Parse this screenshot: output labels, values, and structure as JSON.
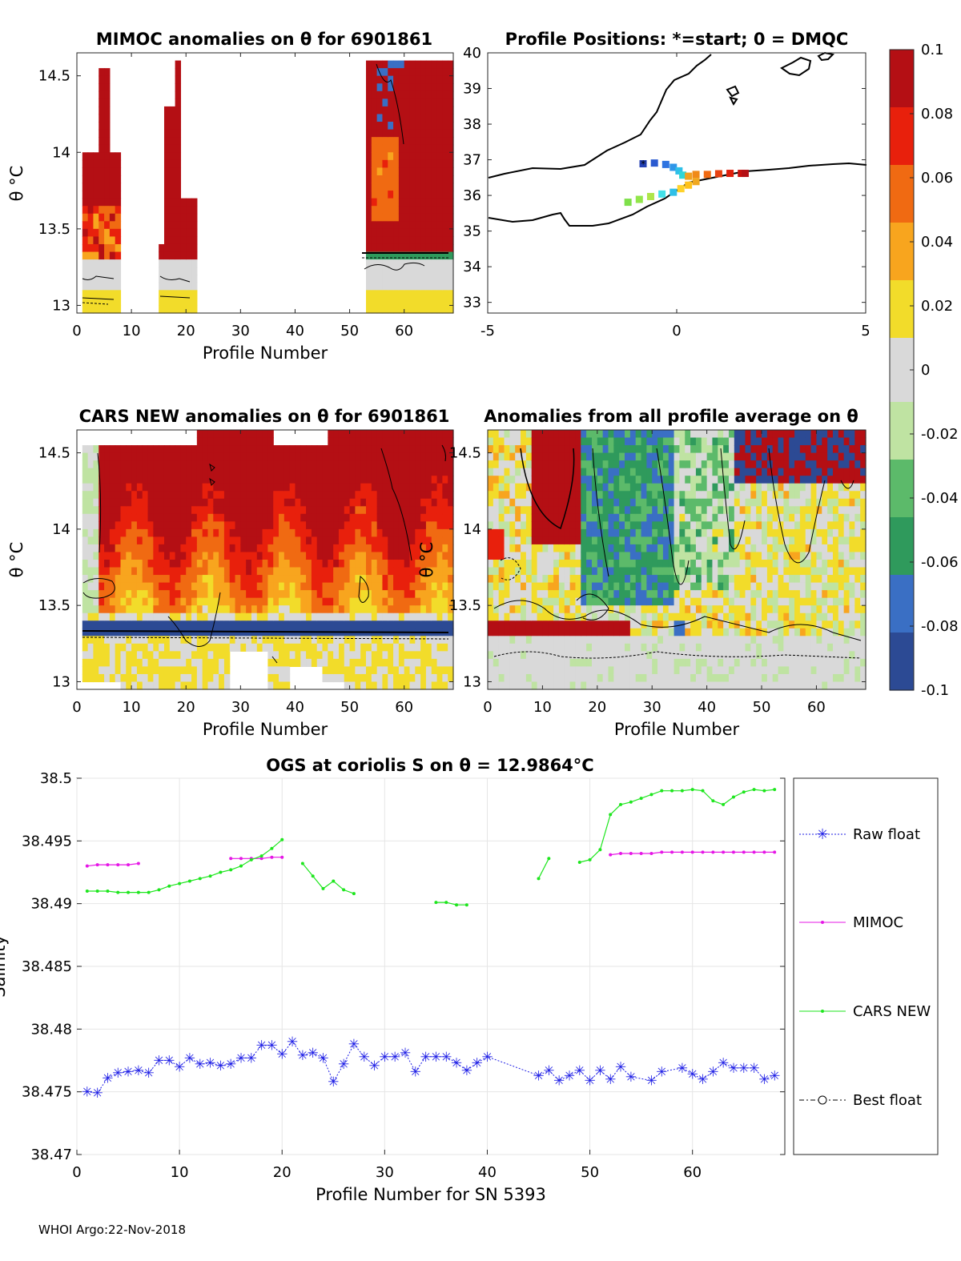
{
  "figure": {
    "footer": "WHOI Argo:22-Nov-2018"
  },
  "panels": {
    "mimoc": {
      "title": "MIMOC anomalies on θ  for 6901861",
      "xlabel": "Profile Number",
      "ylabel": "θ °C",
      "xticks": [
        "0",
        "10",
        "20",
        "30",
        "40",
        "50",
        "60"
      ],
      "yticks": [
        "13",
        "13.5",
        "14",
        "14.5"
      ]
    },
    "map": {
      "title": "Profile Positions: *=start; 0 = DMQC",
      "xticks": [
        "-5",
        "0",
        "5"
      ],
      "yticks": [
        "33",
        "34",
        "35",
        "36",
        "37",
        "38",
        "39",
        "40"
      ]
    },
    "cars": {
      "title": "CARS NEW anomalies on θ for 6901861",
      "xlabel": "Profile Number",
      "ylabel": "θ °C",
      "xticks": [
        "0",
        "10",
        "20",
        "30",
        "40",
        "50",
        "60"
      ],
      "yticks": [
        "13",
        "13.5",
        "14",
        "14.5"
      ]
    },
    "avg": {
      "title": "Anomalies from all profile average on θ",
      "xlabel": "Profile Number",
      "ylabel": "θ °C",
      "xticks": [
        "0",
        "10",
        "20",
        "30",
        "40",
        "50",
        "60"
      ],
      "yticks": [
        "13",
        "13.5",
        "14",
        "14.5"
      ]
    },
    "colorbar": {
      "ticks": [
        "0.1",
        "0.08",
        "0.06",
        "0.04",
        "0.02",
        "0",
        "-0.02",
        "-0.04",
        "-0.06",
        "-0.08",
        "-0.1"
      ],
      "colors": [
        "#2c4a94",
        "#3a6fc4",
        "#2f9a5c",
        "#5cba6a",
        "#bfe3a2",
        "#d9d9d9",
        "#f2dc2a",
        "#f8a51e",
        "#f06a12",
        "#e8200c",
        "#b40f14"
      ]
    },
    "salinity": {
      "title": "OGS at coriolis S on θ = 12.9864°C",
      "xlabel": "Profile Number for SN 5393",
      "ylabel": "Salinity",
      "legend": [
        "Raw float",
        "MIMOC",
        "CARS NEW",
        "Best float"
      ]
    }
  },
  "chart_data": [
    {
      "type": "heatmap",
      "title": "MIMOC anomalies on θ  for 6901861",
      "xlabel": "Profile Number",
      "ylabel": "θ °C",
      "xlim": [
        0,
        69
      ],
      "ylim": [
        12.95,
        14.65
      ],
      "clim": [
        -0.1,
        0.1
      ],
      "bands": [
        {
          "x0": 1,
          "x1": 7,
          "theta_top": 14.55,
          "theta_bottom": 12.95
        },
        {
          "x0": 15,
          "x1": 21,
          "theta_top": 14.6,
          "theta_bottom": 13.0
        },
        {
          "x0": 53,
          "x1": 68,
          "theta_top": 14.6,
          "theta_bottom": 12.95
        }
      ]
    },
    {
      "type": "scatter",
      "title": "Profile Positions: *=start; 0 = DMQC",
      "xlim": [
        -5,
        5
      ],
      "ylim": [
        32.7,
        40
      ],
      "track_lon": [
        -0.9,
        -0.6,
        -0.3,
        -0.1,
        0.05,
        0.15,
        0.3,
        0.5,
        0.8,
        1.1,
        1.4,
        1.7,
        1.8
      ],
      "track_lat": [
        36.9,
        36.92,
        36.88,
        36.8,
        36.7,
        36.58,
        36.55,
        36.6,
        36.6,
        36.62,
        36.63,
        36.63,
        36.63
      ],
      "track2_lon": [
        -1.3,
        -1.0,
        -0.7,
        -0.4,
        -0.1,
        0.1,
        0.3,
        0.5
      ],
      "track2_lat": [
        35.82,
        35.9,
        35.98,
        36.05,
        36.1,
        36.2,
        36.3,
        36.4
      ]
    },
    {
      "type": "heatmap",
      "title": "CARS NEW anomalies on θ for 6901861",
      "xlabel": "Profile Number",
      "ylabel": "θ °C",
      "xlim": [
        0,
        69
      ],
      "ylim": [
        12.95,
        14.65
      ],
      "clim": [
        -0.1,
        0.1
      ]
    },
    {
      "type": "heatmap",
      "title": "Anomalies from all profile average on θ",
      "xlabel": "Profile Number",
      "ylabel": "θ °C",
      "xlim": [
        0,
        69
      ],
      "ylim": [
        12.95,
        14.65
      ],
      "clim": [
        -0.1,
        0.1
      ]
    },
    {
      "type": "line",
      "title": "OGS at coriolis S on θ = 12.9864°C",
      "xlabel": "Profile Number for SN 5393",
      "ylabel": "Salinity",
      "xlim": [
        0,
        69
      ],
      "ylim": [
        38.47,
        38.5
      ],
      "xticks": [
        0,
        10,
        20,
        30,
        40,
        50,
        60
      ],
      "yticks": [
        38.47,
        38.475,
        38.48,
        38.485,
        38.49,
        38.495,
        38.5
      ],
      "series": [
        {
          "name": "Raw float",
          "color": "#1f1fe6",
          "x": [
            1,
            2,
            3,
            4,
            5,
            6,
            7,
            8,
            9,
            10,
            11,
            12,
            13,
            14,
            15,
            16,
            17,
            18,
            19,
            20,
            21,
            22,
            23,
            24,
            25,
            26,
            27,
            28,
            29,
            30,
            31,
            32,
            33,
            34,
            35,
            36,
            37,
            38,
            39,
            40,
            45,
            46,
            47,
            48,
            49,
            50,
            51,
            52,
            53,
            54,
            56,
            57,
            59,
            60,
            61,
            62,
            63,
            64,
            65,
            66,
            67,
            68
          ],
          "y": [
            38.475,
            38.4749,
            38.4761,
            38.4765,
            38.4766,
            38.4767,
            38.4765,
            38.4775,
            38.4775,
            38.477,
            38.4777,
            38.4772,
            38.4773,
            38.4771,
            38.4772,
            38.4777,
            38.4777,
            38.4787,
            38.4787,
            38.478,
            38.479,
            38.4779,
            38.4781,
            38.4777,
            38.4758,
            38.4772,
            38.4788,
            38.4778,
            38.4771,
            38.4778,
            38.4778,
            38.4781,
            38.4766,
            38.4778,
            38.4778,
            38.4778,
            38.4773,
            38.4767,
            38.4773,
            38.4778,
            38.4763,
            38.4767,
            38.4759,
            38.4763,
            38.4767,
            38.4759,
            38.4767,
            38.476,
            38.477,
            38.4762,
            38.4759,
            38.4766,
            38.4769,
            38.4764,
            38.476,
            38.4766,
            38.4773,
            38.4769,
            38.4769,
            38.4769,
            38.476,
            38.4763
          ]
        },
        {
          "name": "MIMOC",
          "color": "#e617e6",
          "segments": [
            {
              "x": [
                1,
                2,
                3,
                4,
                5,
                6
              ],
              "y": [
                38.493,
                38.4931,
                38.4931,
                38.4931,
                38.4931,
                38.4932
              ]
            },
            {
              "x": [
                15,
                16,
                17,
                18,
                19,
                20
              ],
              "y": [
                38.4936,
                38.4936,
                38.4936,
                38.4936,
                38.4937,
                38.4937
              ]
            },
            {
              "x": [
                52,
                53,
                54,
                55,
                56,
                57,
                58,
                59,
                60,
                61,
                62,
                63,
                64,
                65,
                66,
                67,
                68
              ],
              "y": [
                38.4939,
                38.494,
                38.494,
                38.494,
                38.494,
                38.4941,
                38.4941,
                38.4941,
                38.4941,
                38.4941,
                38.4941,
                38.4941,
                38.4941,
                38.4941,
                38.4941,
                38.4941,
                38.4941
              ]
            }
          ]
        },
        {
          "name": "CARS NEW",
          "color": "#1ee61e",
          "segments": [
            {
              "x": [
                1,
                2,
                3,
                4,
                5,
                6,
                7,
                8,
                9,
                10,
                11,
                12,
                13,
                14,
                15,
                16,
                17,
                18,
                19,
                20
              ],
              "y": [
                38.491,
                38.491,
                38.491,
                38.4909,
                38.4909,
                38.4909,
                38.4909,
                38.4911,
                38.4914,
                38.4916,
                38.4918,
                38.492,
                38.4922,
                38.4925,
                38.4927,
                38.493,
                38.4935,
                38.4938,
                38.4944,
                38.4951
              ]
            },
            {
              "x": [
                22,
                23,
                24,
                25,
                26,
                27
              ],
              "y": [
                38.4932,
                38.4922,
                38.4912,
                38.4918,
                38.4911,
                38.4908
              ]
            },
            {
              "x": [
                35,
                36,
                37,
                38
              ],
              "y": [
                38.4901,
                38.4901,
                38.4899,
                38.4899
              ]
            },
            {
              "x": [
                45,
                46
              ],
              "y": [
                38.492,
                38.4936
              ]
            },
            {
              "x": [
                49,
                50,
                51,
                52,
                53,
                54,
                55,
                56,
                57,
                58,
                59,
                60,
                61,
                62,
                63,
                64,
                65,
                66,
                67,
                68
              ],
              "y": [
                38.4933,
                38.4935,
                38.4943,
                38.4971,
                38.4979,
                38.4981,
                38.4984,
                38.4987,
                38.499,
                38.499,
                38.499,
                38.4991,
                38.499,
                38.4982,
                38.4979,
                38.4985,
                38.4989,
                38.4991,
                38.499,
                38.4991
              ]
            }
          ]
        },
        {
          "name": "Best float",
          "color": "#000000",
          "x": [],
          "y": []
        }
      ]
    }
  ]
}
